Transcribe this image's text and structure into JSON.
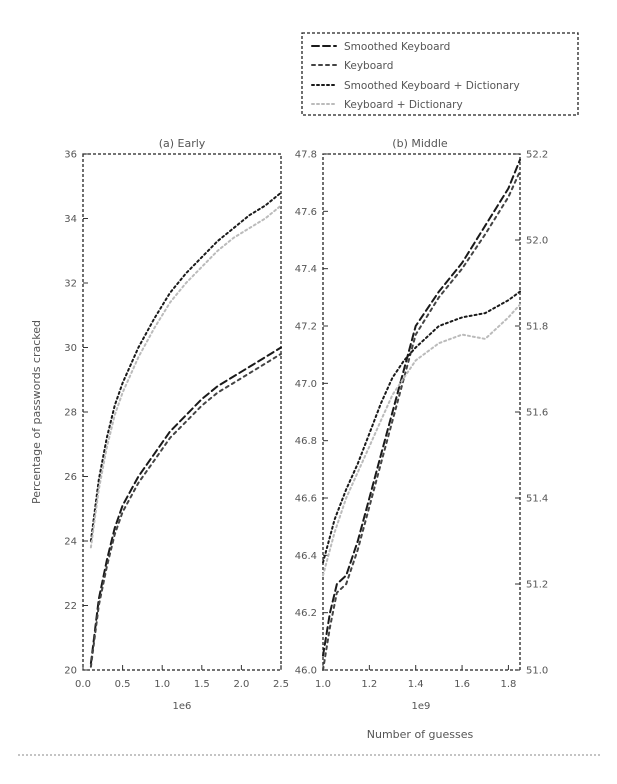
{
  "chart_data": [
    {
      "type": "line",
      "title": "(a) Early",
      "xlabel": "",
      "ylabel": "Percentage of passwords cracked",
      "xlim": [
        0.0,
        2.5
      ],
      "ylim": [
        20,
        36
      ],
      "x_scale_label": "1e6",
      "xticks": [
        "0.0",
        "0.5",
        "1.0",
        "1.5",
        "2.0",
        "2.5"
      ],
      "yticks": [
        "20",
        "22",
        "24",
        "26",
        "28",
        "30",
        "32",
        "34",
        "36"
      ],
      "series": [
        {
          "name": "Smoothed Keyboard",
          "x": [
            0.1,
            0.2,
            0.3,
            0.4,
            0.5,
            0.7,
            0.9,
            1.1,
            1.3,
            1.5,
            1.7,
            1.9,
            2.1,
            2.3,
            2.5
          ],
          "y": [
            20.2,
            22.2,
            23.4,
            24.4,
            25.1,
            26.0,
            26.7,
            27.4,
            27.9,
            28.4,
            28.8,
            29.1,
            29.4,
            29.7,
            30.0
          ]
        },
        {
          "name": "Keyboard",
          "x": [
            0.1,
            0.2,
            0.3,
            0.4,
            0.5,
            0.7,
            0.9,
            1.1,
            1.3,
            1.5,
            1.7,
            1.9,
            2.1,
            2.3,
            2.5
          ],
          "y": [
            20.1,
            22.0,
            23.2,
            24.2,
            24.9,
            25.8,
            26.5,
            27.2,
            27.7,
            28.2,
            28.6,
            28.9,
            29.2,
            29.5,
            29.8
          ]
        },
        {
          "name": "Smoothed Keyboard + Dictionary",
          "x": [
            0.1,
            0.2,
            0.3,
            0.4,
            0.5,
            0.7,
            0.9,
            1.1,
            1.3,
            1.5,
            1.7,
            1.9,
            2.1,
            2.3,
            2.5
          ],
          "y": [
            24.0,
            25.9,
            27.2,
            28.2,
            28.9,
            30.0,
            30.9,
            31.7,
            32.3,
            32.8,
            33.3,
            33.7,
            34.1,
            34.4,
            34.8
          ]
        },
        {
          "name": "Keyboard + Dictionary",
          "x": [
            0.1,
            0.2,
            0.3,
            0.4,
            0.5,
            0.7,
            0.9,
            1.1,
            1.3,
            1.5,
            1.7,
            1.9,
            2.1,
            2.3,
            2.5
          ],
          "y": [
            23.8,
            25.6,
            26.9,
            27.9,
            28.6,
            29.7,
            30.6,
            31.4,
            32.0,
            32.5,
            33.0,
            33.4,
            33.7,
            34.0,
            34.4
          ]
        }
      ]
    },
    {
      "type": "line",
      "title": "(b) Middle",
      "xlabel": "Number of guesses",
      "ylabel": "",
      "xlim": [
        1.0,
        1.85
      ],
      "ylim_left": [
        46.0,
        47.8
      ],
      "ylim_right": [
        51.0,
        52.2
      ],
      "x_scale_label": "1e9",
      "xticks": [
        "1.0",
        "1.2",
        "1.4",
        "1.6",
        "1.8"
      ],
      "yticks_left": [
        "46.0",
        "46.2",
        "46.4",
        "46.6",
        "46.8",
        "47.0",
        "47.2",
        "47.4",
        "47.6",
        "47.8"
      ],
      "yticks_right": [
        "51.0",
        "51.2",
        "51.4",
        "51.6",
        "51.8",
        "52.0",
        "52.2"
      ],
      "series": [
        {
          "name": "Smoothed Keyboard",
          "axis": "left",
          "x": [
            1.0,
            1.03,
            1.06,
            1.1,
            1.15,
            1.2,
            1.25,
            1.3,
            1.4,
            1.5,
            1.6,
            1.7,
            1.8,
            1.85
          ],
          "y": [
            46.05,
            46.2,
            46.3,
            46.33,
            46.45,
            46.6,
            46.75,
            46.9,
            47.2,
            47.32,
            47.42,
            47.55,
            47.68,
            47.78
          ]
        },
        {
          "name": "Keyboard",
          "axis": "left",
          "x": [
            1.0,
            1.03,
            1.06,
            1.1,
            1.15,
            1.2,
            1.25,
            1.3,
            1.4,
            1.5,
            1.6,
            1.7,
            1.8,
            1.85
          ],
          "y": [
            46.0,
            46.15,
            46.27,
            46.3,
            46.42,
            46.57,
            46.72,
            46.87,
            47.17,
            47.3,
            47.4,
            47.52,
            47.65,
            47.74
          ]
        },
        {
          "name": "Smoothed Keyboard + Dictionary",
          "axis": "right",
          "x": [
            1.0,
            1.05,
            1.1,
            1.15,
            1.2,
            1.25,
            1.3,
            1.35,
            1.4,
            1.5,
            1.6,
            1.7,
            1.8,
            1.85
          ],
          "y": [
            51.25,
            51.35,
            51.42,
            51.48,
            51.55,
            51.62,
            51.68,
            51.72,
            51.75,
            51.8,
            51.82,
            51.83,
            51.86,
            51.88
          ]
        },
        {
          "name": "Keyboard + Dictionary",
          "axis": "right",
          "x": [
            1.0,
            1.05,
            1.1,
            1.15,
            1.2,
            1.25,
            1.3,
            1.35,
            1.4,
            1.5,
            1.6,
            1.7,
            1.8,
            1.85
          ],
          "y": [
            51.22,
            51.32,
            51.4,
            51.46,
            51.52,
            51.58,
            51.64,
            51.68,
            51.72,
            51.76,
            51.78,
            51.77,
            51.82,
            51.85
          ]
        }
      ]
    }
  ],
  "legend": {
    "placement": "top-right",
    "entries": [
      "Smoothed Keyboard",
      "Keyboard",
      "Smoothed Keyboard + Dictionary",
      "Keyboard + Dictionary"
    ]
  },
  "styles": {
    "Smoothed Keyboard": {
      "color": "#1a1a1a",
      "dash": "7 4"
    },
    "Keyboard": {
      "color": "#444444",
      "dash": "3 4"
    },
    "Smoothed Keyboard + Dictionary": {
      "color": "#1a1a1a",
      "dash": "2 3"
    },
    "Keyboard + Dictionary": {
      "color": "#bbbbbb",
      "dash": "2 3"
    }
  }
}
